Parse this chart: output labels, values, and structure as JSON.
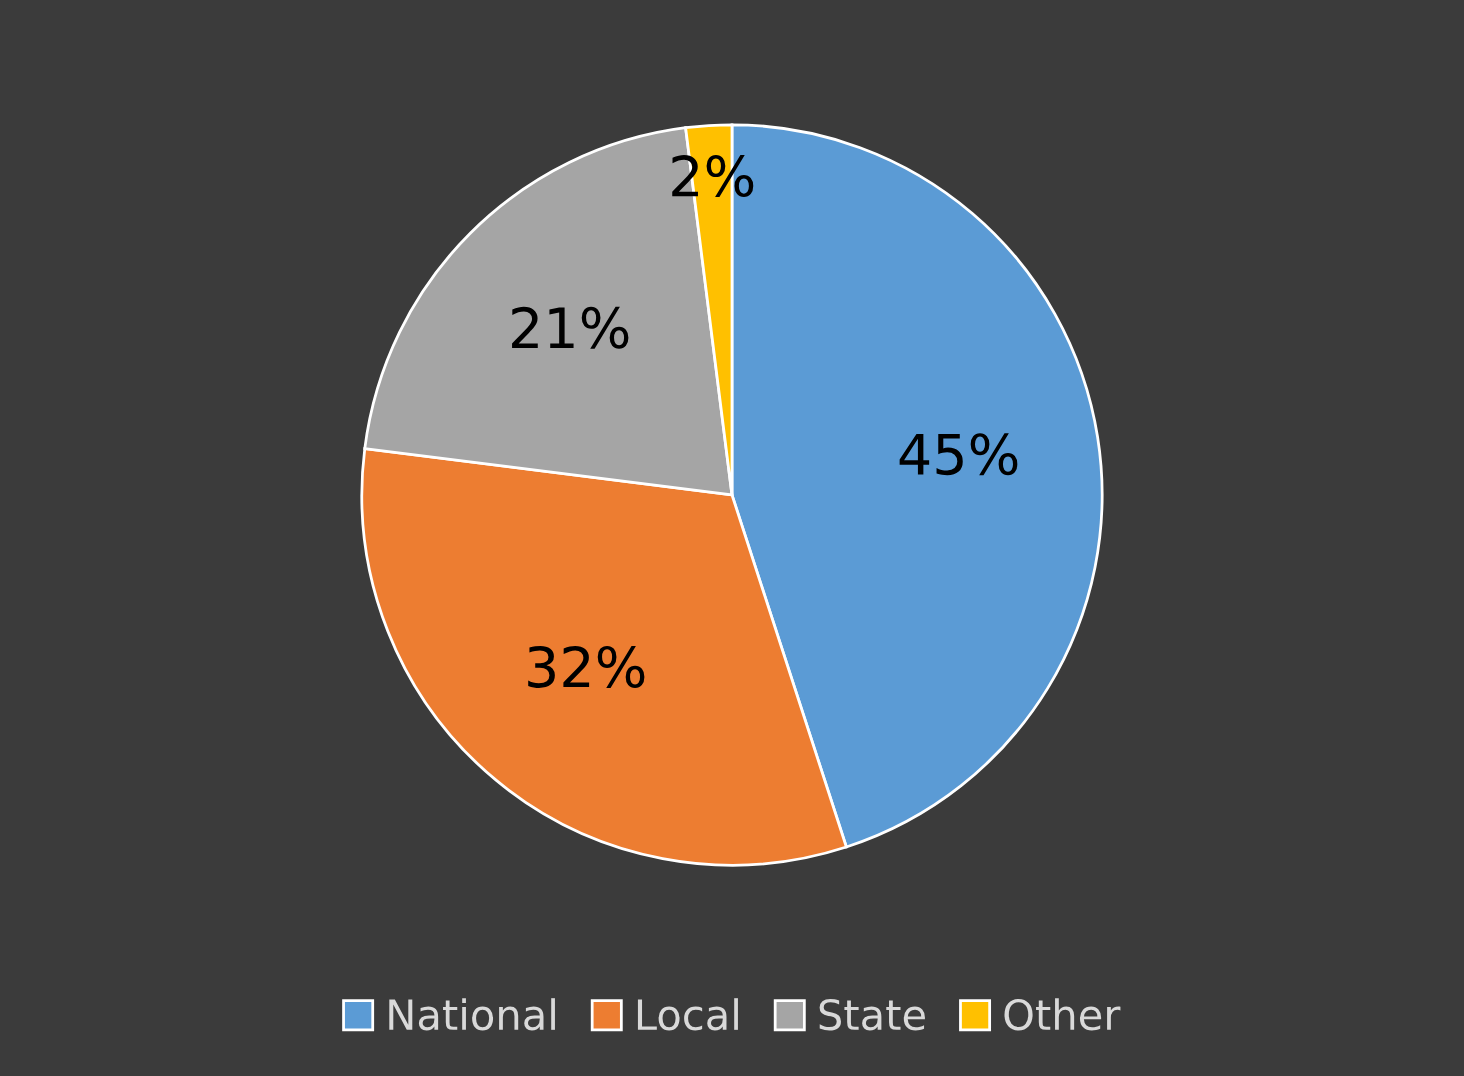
{
  "chart_data": {
    "type": "pie",
    "categories": [
      "National",
      "Local",
      "State",
      "Other"
    ],
    "values": [
      45,
      32,
      21,
      2
    ],
    "colors": [
      "#5b9bd5",
      "#ed7d31",
      "#a5a5a5",
      "#ffc000"
    ],
    "value_labels": [
      "45%",
      "32%",
      "21%",
      "2%"
    ],
    "legend": "bottom"
  }
}
